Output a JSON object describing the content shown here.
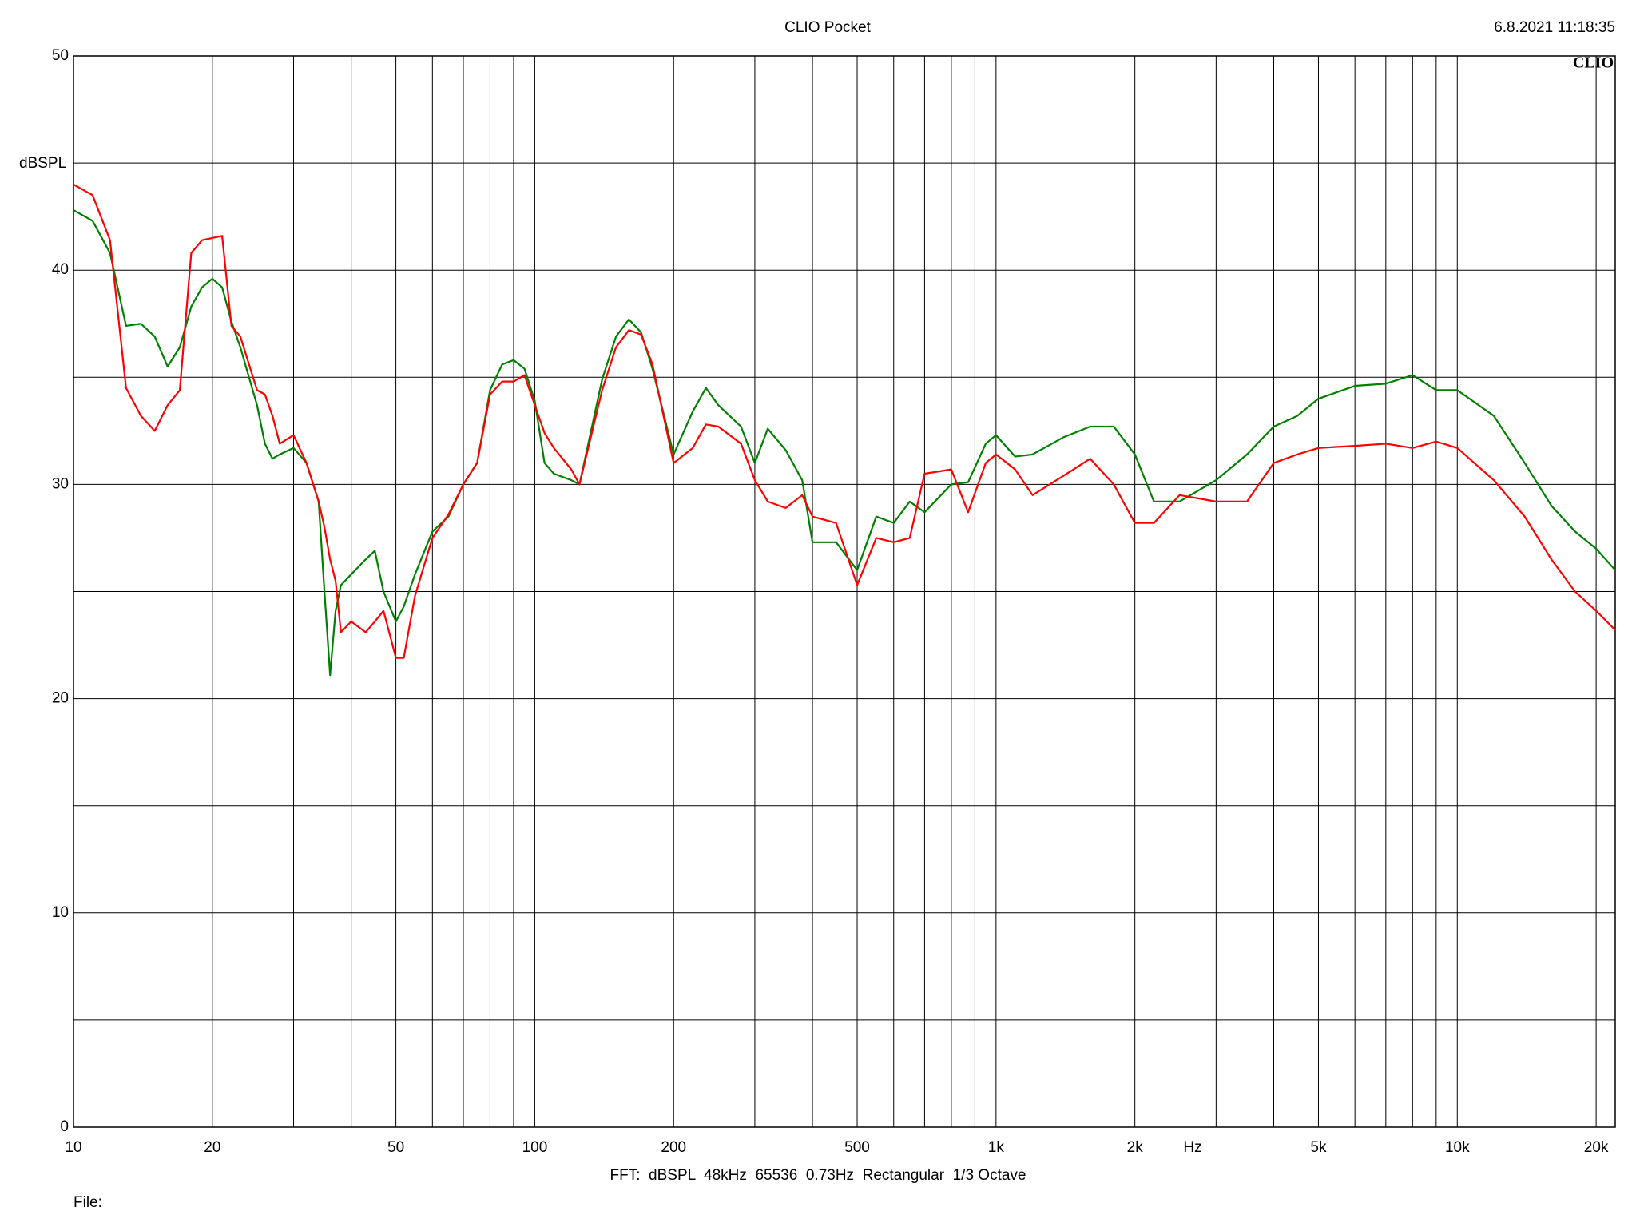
{
  "chart_data": {
    "type": "line",
    "title": "CLIO Pocket",
    "timestamp": "6.8.2021 11:18:35",
    "logo": "CLIO",
    "ylabel": "dBSPL",
    "xlabel": "Hz",
    "footer": "FFT:  dBSPL  48kHz  65536  0.73Hz  Rectangular  1/3 Octave",
    "file_label": "File:",
    "xscale": "log",
    "grid": true,
    "xlim": [
      10,
      22000
    ],
    "ylim": [
      0,
      50
    ],
    "xticks": [
      10,
      20,
      50,
      100,
      200,
      500,
      {
        "value": 1000,
        "label": "1k"
      },
      {
        "value": 2000,
        "label": "2k"
      },
      {
        "value": 5000,
        "label": "5k"
      },
      {
        "value": 10000,
        "label": "10k"
      },
      {
        "value": 20000,
        "label": "20k"
      }
    ],
    "xminor": [
      30,
      40,
      60,
      70,
      80,
      90,
      300,
      400,
      600,
      700,
      800,
      900,
      3000,
      4000,
      6000,
      7000,
      8000,
      9000
    ],
    "yticks": [
      0,
      10,
      20,
      30,
      40,
      50
    ],
    "yminor": [
      5,
      15,
      25,
      35,
      45
    ],
    "x": [
      10,
      11,
      12,
      13,
      14,
      15,
      16,
      17,
      18,
      19,
      20,
      21,
      22,
      23,
      25,
      26,
      27,
      28,
      30,
      32,
      34,
      35,
      36,
      37,
      38,
      40,
      43,
      45,
      47,
      50,
      52,
      55,
      60,
      65,
      70,
      75,
      80,
      85,
      90,
      95,
      100,
      105,
      110,
      120,
      125,
      140,
      150,
      160,
      170,
      180,
      200,
      220,
      235,
      250,
      280,
      300,
      320,
      350,
      380,
      400,
      450,
      500,
      550,
      600,
      650,
      700,
      800,
      870,
      950,
      1000,
      1100,
      1200,
      1400,
      1600,
      1800,
      2000,
      2200,
      2500,
      3000,
      3500,
      4000,
      4500,
      5000,
      6000,
      7000,
      8000,
      9000,
      10000,
      12000,
      14000,
      16000,
      18000,
      20000,
      22000
    ],
    "series": [
      {
        "color": "#008000",
        "values": [
          42.8,
          42.3,
          40.8,
          37.4,
          37.5,
          36.9,
          35.5,
          36.4,
          38.3,
          39.2,
          39.6,
          39.2,
          37.6,
          36.4,
          33.7,
          31.9,
          31.2,
          31.4,
          31.7,
          31.0,
          29.2,
          25.0,
          21.1,
          24.1,
          25.3,
          25.8,
          26.5,
          26.9,
          25.0,
          23.6,
          24.3,
          25.8,
          27.8,
          28.5,
          30.0,
          31.0,
          34.4,
          35.6,
          35.8,
          35.4,
          33.9,
          31.0,
          30.5,
          30.2,
          30.0,
          34.9,
          36.9,
          37.7,
          37.1,
          35.4,
          31.4,
          33.4,
          34.5,
          33.7,
          32.7,
          31.0,
          32.6,
          31.6,
          30.2,
          27.3,
          27.3,
          26.0,
          28.5,
          28.2,
          29.2,
          28.7,
          30.0,
          30.1,
          31.9,
          32.3,
          31.3,
          31.4,
          32.2,
          32.7,
          32.7,
          31.4,
          29.2,
          29.2,
          30.2,
          31.4,
          32.7,
          33.2,
          34.0,
          34.6,
          34.7,
          35.1,
          34.4,
          34.4,
          33.2,
          31.0,
          29.0,
          27.8,
          27.0,
          26.0
        ]
      },
      {
        "color": "#ff0000",
        "values": [
          44.0,
          43.5,
          41.4,
          34.5,
          33.2,
          32.5,
          33.7,
          34.4,
          40.8,
          41.4,
          41.5,
          41.6,
          37.4,
          36.9,
          34.4,
          34.2,
          33.2,
          31.9,
          32.3,
          31.0,
          29.2,
          28.0,
          26.5,
          25.5,
          23.1,
          23.6,
          23.1,
          23.6,
          24.1,
          21.9,
          21.9,
          24.8,
          27.5,
          28.6,
          30.0,
          31.0,
          34.2,
          34.8,
          34.8,
          35.1,
          33.7,
          32.4,
          31.7,
          30.7,
          30.0,
          34.4,
          36.4,
          37.2,
          37.0,
          35.6,
          31.0,
          31.7,
          32.8,
          32.7,
          31.9,
          30.2,
          29.2,
          28.9,
          29.5,
          28.5,
          28.2,
          25.3,
          27.5,
          27.3,
          27.5,
          30.5,
          30.7,
          28.7,
          31.0,
          31.4,
          30.7,
          29.5,
          30.4,
          31.2,
          30.0,
          28.2,
          28.2,
          29.5,
          29.2,
          29.2,
          31.0,
          31.4,
          31.7,
          31.8,
          31.9,
          31.7,
          32.0,
          31.7,
          30.2,
          28.5,
          26.5,
          25.0,
          24.1,
          23.2
        ]
      }
    ]
  }
}
